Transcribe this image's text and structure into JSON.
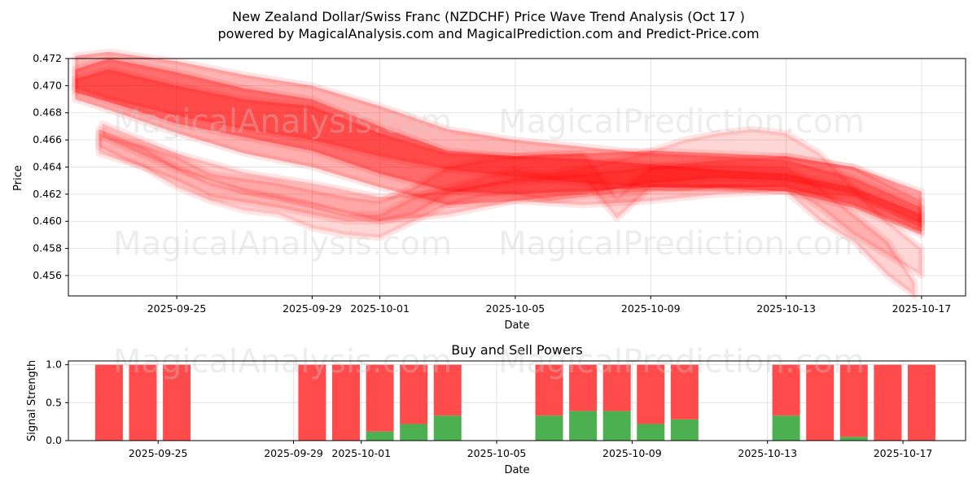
{
  "title_line1": "New Zealand Dollar/Swiss Franc (NZDCHF) Price Wave Trend Analysis (Oct 17 )",
  "title_line2": "powered by MagicalAnalysis.com and MagicalPrediction.com and Predict-Price.com",
  "watermarks": [
    "MagicalAnalysis.com",
    "MagicalPrediction.com"
  ],
  "colors": {
    "wave": "#ff0000",
    "buy": "#4caf50",
    "sell": "#ff4b4b",
    "grid": "#dddddd"
  },
  "chart_data": [
    {
      "type": "area",
      "name": "price-wave",
      "title": "",
      "xlabel": "Date",
      "ylabel": "Price",
      "ylim": [
        0.4545,
        0.472
      ],
      "xlim_days": [
        -3.2,
        23.3
      ],
      "x_origin": "2025-09-25",
      "xticks": [
        {
          "day": 0,
          "label": "2025-09-25"
        },
        {
          "day": 4,
          "label": "2025-09-29"
        },
        {
          "day": 6,
          "label": "2025-10-01"
        },
        {
          "day": 10,
          "label": "2025-10-05"
        },
        {
          "day": 14,
          "label": "2025-10-09"
        },
        {
          "day": 18,
          "label": "2025-10-13"
        },
        {
          "day": 22,
          "label": "2025-10-17"
        }
      ],
      "yticks": [
        {
          "value": 0.456,
          "label": "0.456"
        },
        {
          "value": 0.458,
          "label": "0.458"
        },
        {
          "value": 0.46,
          "label": "0.460"
        },
        {
          "value": 0.462,
          "label": "0.462"
        },
        {
          "value": 0.464,
          "label": "0.464"
        },
        {
          "value": 0.466,
          "label": "0.466"
        },
        {
          "value": 0.468,
          "label": "0.468"
        },
        {
          "value": 0.47,
          "label": "0.470"
        },
        {
          "value": 0.472,
          "label": "0.472"
        }
      ],
      "series": [
        {
          "name": "band-1",
          "x": [
            -3,
            -2,
            0,
            2,
            4,
            6,
            8,
            10,
            12,
            14,
            16,
            18,
            20,
            22
          ],
          "lower": [
            0.4695,
            0.4688,
            0.4672,
            0.4662,
            0.4652,
            0.4635,
            0.4622,
            0.462,
            0.4622,
            0.4625,
            0.4625,
            0.4625,
            0.4612,
            0.4592
          ],
          "upper": [
            0.4712,
            0.472,
            0.471,
            0.4698,
            0.469,
            0.467,
            0.4652,
            0.4648,
            0.4646,
            0.4642,
            0.4638,
            0.4635,
            0.4625,
            0.4605
          ]
        },
        {
          "name": "band-2",
          "x": [
            -3,
            -2,
            0,
            2,
            4,
            6,
            8,
            10,
            12,
            14,
            16,
            18,
            20,
            22
          ],
          "lower": [
            0.4698,
            0.469,
            0.4678,
            0.4668,
            0.466,
            0.4648,
            0.4638,
            0.4633,
            0.4628,
            0.4625,
            0.4624,
            0.4622,
            0.461,
            0.459
          ],
          "upper": [
            0.4722,
            0.4725,
            0.4718,
            0.4708,
            0.47,
            0.4685,
            0.4668,
            0.466,
            0.4655,
            0.465,
            0.4648,
            0.4645,
            0.4632,
            0.461
          ]
        },
        {
          "name": "band-3",
          "x": [
            -3,
            -2,
            0,
            2,
            4,
            6,
            8,
            10,
            12,
            14,
            16,
            18,
            20,
            22
          ],
          "lower": [
            0.469,
            0.4682,
            0.4665,
            0.465,
            0.464,
            0.4625,
            0.4612,
            0.4615,
            0.462,
            0.4628,
            0.4632,
            0.463,
            0.462,
            0.4598
          ],
          "upper": [
            0.4705,
            0.4712,
            0.47,
            0.469,
            0.4685,
            0.4665,
            0.465,
            0.4648,
            0.465,
            0.4652,
            0.465,
            0.4648,
            0.464,
            0.4622
          ]
        },
        {
          "name": "band-4",
          "x": [
            -2.3,
            -1.5,
            0,
            1,
            3,
            5,
            6,
            7,
            8,
            9,
            10,
            11,
            12,
            13,
            14,
            16,
            18,
            19,
            20,
            21,
            21.8
          ],
          "lower": [
            0.4655,
            0.4645,
            0.463,
            0.4618,
            0.461,
            0.46,
            0.46,
            0.4605,
            0.462,
            0.4625,
            0.4628,
            0.463,
            0.4632,
            0.4602,
            0.4625,
            0.4625,
            0.4622,
            0.46,
            0.4585,
            0.456,
            0.4545
          ],
          "upper": [
            0.4668,
            0.466,
            0.4648,
            0.4635,
            0.4628,
            0.4618,
            0.4615,
            0.4625,
            0.464,
            0.4645,
            0.4648,
            0.465,
            0.465,
            0.4618,
            0.464,
            0.4642,
            0.464,
            0.4625,
            0.4605,
            0.4585,
            0.4555
          ]
        },
        {
          "name": "band-5",
          "x": [
            -2.3,
            -1,
            0,
            1,
            2,
            3,
            4,
            5,
            6,
            7,
            8,
            9,
            10,
            11,
            12,
            13,
            14,
            15,
            16,
            17,
            18,
            19,
            20,
            21,
            22
          ],
          "lower": [
            0.465,
            0.464,
            0.4625,
            0.4615,
            0.4608,
            0.4605,
            0.4595,
            0.459,
            0.4588,
            0.46,
            0.4612,
            0.4618,
            0.462,
            0.4615,
            0.4618,
            0.462,
            0.4622,
            0.4622,
            0.4625,
            0.4625,
            0.4625,
            0.461,
            0.459,
            0.4575,
            0.456
          ],
          "upper": [
            0.4665,
            0.4655,
            0.464,
            0.4628,
            0.4622,
            0.4618,
            0.4612,
            0.4605,
            0.4605,
            0.4618,
            0.4625,
            0.4632,
            0.4638,
            0.4635,
            0.464,
            0.4645,
            0.4652,
            0.466,
            0.4665,
            0.4668,
            0.4665,
            0.465,
            0.4625,
            0.46,
            0.458
          ]
        },
        {
          "name": "band-6",
          "x": [
            -2.2,
            0,
            2,
            4,
            6,
            8,
            10,
            12,
            14,
            16,
            18,
            20,
            22
          ],
          "lower": [
            0.4662,
            0.4638,
            0.4622,
            0.4612,
            0.46,
            0.4605,
            0.4615,
            0.4612,
            0.4615,
            0.462,
            0.4622,
            0.4618,
            0.4595
          ],
          "upper": [
            0.4672,
            0.465,
            0.4636,
            0.4628,
            0.4618,
            0.4622,
            0.4632,
            0.4635,
            0.464,
            0.4645,
            0.4648,
            0.464,
            0.4615
          ]
        }
      ]
    },
    {
      "type": "bar",
      "name": "buy-sell-powers",
      "title": "Buy and Sell Powers",
      "xlabel": "Date",
      "ylabel": "Signal Strength",
      "ylim": [
        0,
        1.05
      ],
      "xlim_days": [
        -3.2,
        23.3
      ],
      "x_origin": "2025-09-25",
      "xticks": [
        {
          "day": 0,
          "label": "2025-09-25"
        },
        {
          "day": 4,
          "label": "2025-09-29"
        },
        {
          "day": 6,
          "label": "2025-10-01"
        },
        {
          "day": 10,
          "label": "2025-10-05"
        },
        {
          "day": 14,
          "label": "2025-10-09"
        },
        {
          "day": 18,
          "label": "2025-10-13"
        },
        {
          "day": 22,
          "label": "2025-10-17"
        }
      ],
      "yticks": [
        {
          "value": 0.0,
          "label": "0.0"
        },
        {
          "value": 0.5,
          "label": "0.5"
        },
        {
          "value": 1.0,
          "label": "1.0"
        }
      ],
      "categories": [
        "2025-09-23",
        "2025-09-24",
        "2025-09-25",
        "2025-09-29",
        "2025-09-30",
        "2025-10-01",
        "2025-10-02",
        "2025-10-03",
        "2025-10-06",
        "2025-10-07",
        "2025-10-08",
        "2025-10-09",
        "2025-10-10",
        "2025-10-13",
        "2025-10-14",
        "2025-10-15",
        "2025-10-16",
        "2025-10-17"
      ],
      "x_days": [
        -2,
        -1,
        0,
        4,
        5,
        6,
        7,
        8,
        11,
        12,
        13,
        14,
        15,
        18,
        19,
        20,
        21,
        22
      ],
      "series": [
        {
          "name": "Buy",
          "values": [
            0,
            0,
            0,
            0,
            0,
            0.12,
            0.22,
            0.33,
            0.33,
            0.39,
            0.39,
            0.22,
            0.28,
            0.33,
            0,
            0.05,
            0,
            0
          ]
        },
        {
          "name": "Sell",
          "values": [
            1,
            1,
            1,
            1,
            1,
            0.88,
            0.78,
            0.67,
            0.67,
            0.61,
            0.61,
            0.78,
            0.72,
            0.67,
            1,
            0.95,
            1,
            1
          ]
        }
      ]
    }
  ]
}
